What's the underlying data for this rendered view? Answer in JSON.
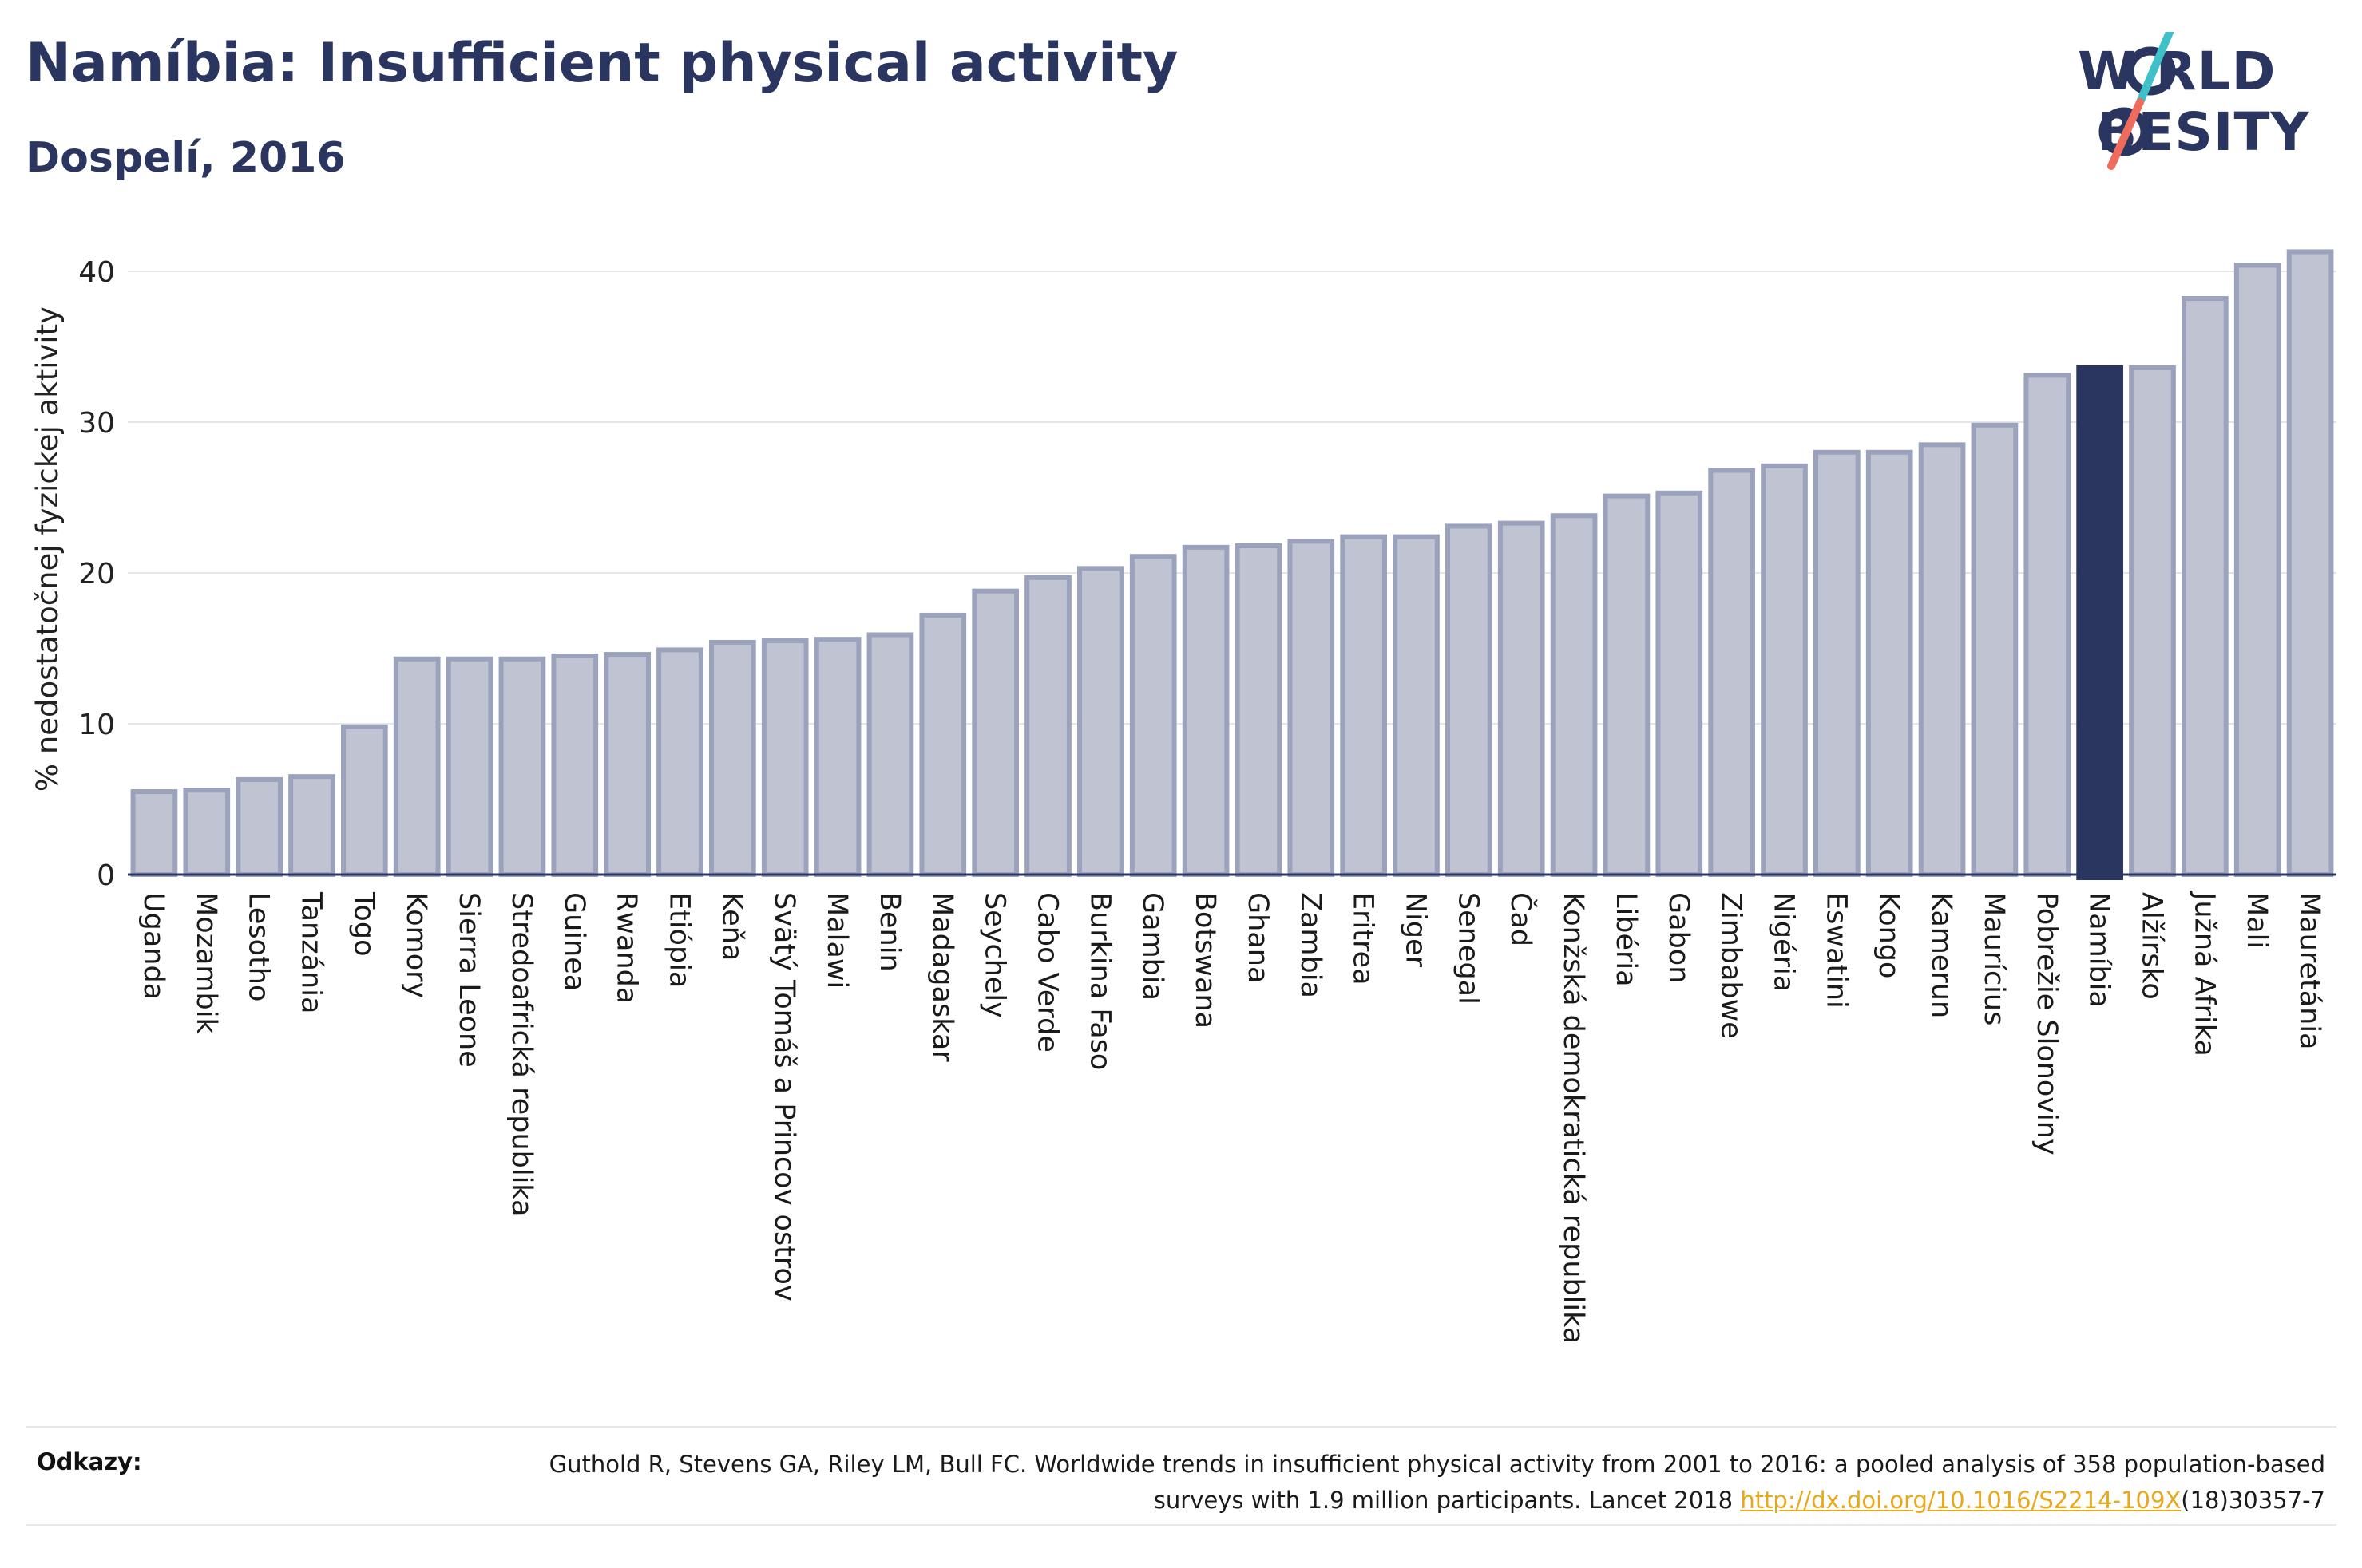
{
  "header": {
    "title": "Namíbia: Insufficient physical activity",
    "subtitle": "Dospelí, 2016"
  },
  "logo": {
    "line1": "W RLD",
    "line2": " BESITY",
    "text": "WORLD OBESITY",
    "colors": {
      "text": "#2a3560",
      "slash_teal": "#3fc1c9",
      "slash_coral": "#ef6b5b"
    }
  },
  "chart_data": {
    "type": "bar",
    "title": "Namíbia: Insufficient physical activity",
    "subtitle": "Dospelí, 2016",
    "xlabel": "",
    "ylabel": "% nedostatočnej fyzickej aktivity",
    "ylim": [
      0,
      42
    ],
    "yticks": [
      0,
      10,
      20,
      30,
      40
    ],
    "grid": true,
    "highlight": "Namíbia",
    "colors": {
      "bar": "#bfc3d2",
      "bar_border": "#9ba2bb",
      "highlight": "#2a3560",
      "grid": "#e6e6ea",
      "axis": "#2a3560"
    },
    "categories": [
      "Uganda",
      "Mozambik",
      "Lesotho",
      "Tanzánia",
      "Togo",
      "Komory",
      "Sierra Leone",
      "Stredoafrická republika",
      "Guinea",
      "Rwanda",
      "Etiópia",
      "Keňa",
      "Svätý Tomáš a Princov ostrov",
      "Malawi",
      "Benin",
      "Madagaskar",
      "Seychely",
      "Cabo Verde",
      "Burkina Faso",
      "Gambia",
      "Botswana",
      "Ghana",
      "Zambia",
      "Eritrea",
      "Niger",
      "Senegal",
      "Čad",
      "Konžská demokratická republika",
      "Libéria",
      "Gabon",
      "Zimbabwe",
      "Nigéria",
      "Eswatini",
      "Kongo",
      "Kamerun",
      "Maurícius",
      "Pobrežie Slonoviny",
      "Namíbia",
      "Alžírsko",
      "Južná Afrika",
      "Mali",
      "Mauretánia"
    ],
    "values": [
      5.5,
      5.6,
      6.3,
      6.5,
      9.8,
      14.3,
      14.3,
      14.3,
      14.5,
      14.6,
      14.9,
      15.4,
      15.5,
      15.6,
      15.9,
      17.2,
      18.8,
      19.7,
      20.3,
      21.1,
      21.7,
      21.8,
      22.1,
      22.4,
      22.4,
      23.1,
      23.3,
      23.8,
      25.1,
      25.3,
      26.8,
      27.1,
      28.0,
      28.0,
      28.5,
      29.8,
      33.1,
      33.6,
      33.6,
      38.2,
      40.4,
      41.3
    ]
  },
  "references": {
    "label": "Odkazy:",
    "text_before": "Guthold R, Stevens GA, Riley LM, Bull FC. Worldwide trends in insufficient physical activity from 2001 to 2016: a pooled analysis of 358 population-based surveys with 1.9 million participants. Lancet 2018 ",
    "link": "http://dx.doi.org/10.1016/S2214-109X",
    "text_after": "(18)30357-7"
  }
}
